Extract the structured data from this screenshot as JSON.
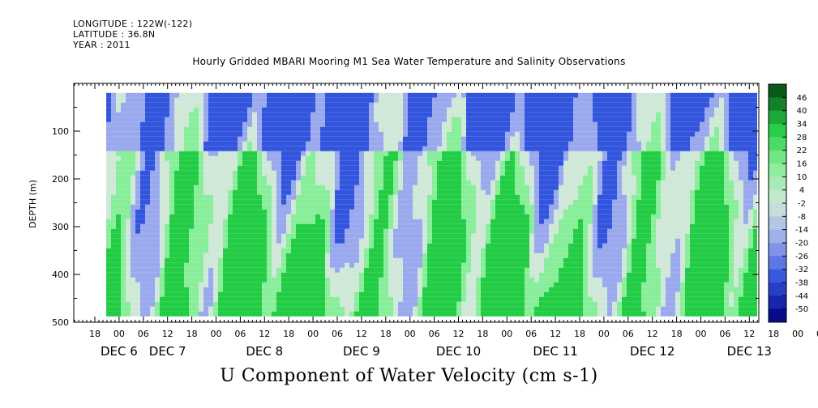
{
  "header": {
    "longitude": "LONGITUDE : 122W(-122)",
    "latitude": "LATITUDE : 36.8N",
    "year": "YEAR : 2011"
  },
  "chart_data": {
    "type": "heatmap",
    "title": "Hourly Gridded MBARI Mooring M1 Sea Water Temperature and Salinity Observations",
    "xlabel": "U Component of Water Velocity (cm s-1)",
    "ylabel": "DEPTH (m)",
    "y_ticks": [
      100,
      200,
      300,
      400,
      500
    ],
    "y_range": [
      0,
      500
    ],
    "y_inverted": true,
    "hour_ticks": [
      "18",
      "00",
      "06",
      "12",
      "18",
      "00",
      "06",
      "12",
      "18",
      "00",
      "06",
      "12",
      "18",
      "00",
      "06",
      "12",
      "18",
      "00",
      "06",
      "12",
      "18",
      "00",
      "06",
      "12",
      "18",
      "00",
      "06",
      "12",
      "18",
      "00",
      "06",
      "12"
    ],
    "day_labels": [
      {
        "text": "DEC  6",
        "tick": 1
      },
      {
        "text": "DEC  7",
        "tick": 3
      },
      {
        "text": "DEC  8",
        "tick": 7
      },
      {
        "text": "DEC  9",
        "tick": 11
      },
      {
        "text": "DEC 10",
        "tick": 15
      },
      {
        "text": "DEC 11",
        "tick": 19
      },
      {
        "text": "DEC 12",
        "tick": 23
      },
      {
        "text": "DEC 13",
        "tick": 27
      }
    ],
    "colorbar_levels": [
      "46",
      "40",
      "34",
      "28",
      "22",
      "16",
      "10",
      "4",
      "-2",
      "-8",
      "-14",
      "-20",
      "-26",
      "-32",
      "-38",
      "-44",
      "-50"
    ],
    "colorbar_range": [
      -50,
      52
    ],
    "colors": {
      "strong_negative": "#0a0a8c",
      "negative": "#3355dd",
      "weak_negative": "#9aa8ee",
      "near_zero": "#cfe8d8",
      "weak_positive": "#88ee99",
      "positive": "#22cc44",
      "strong_positive": "#0a5a1a"
    }
  }
}
